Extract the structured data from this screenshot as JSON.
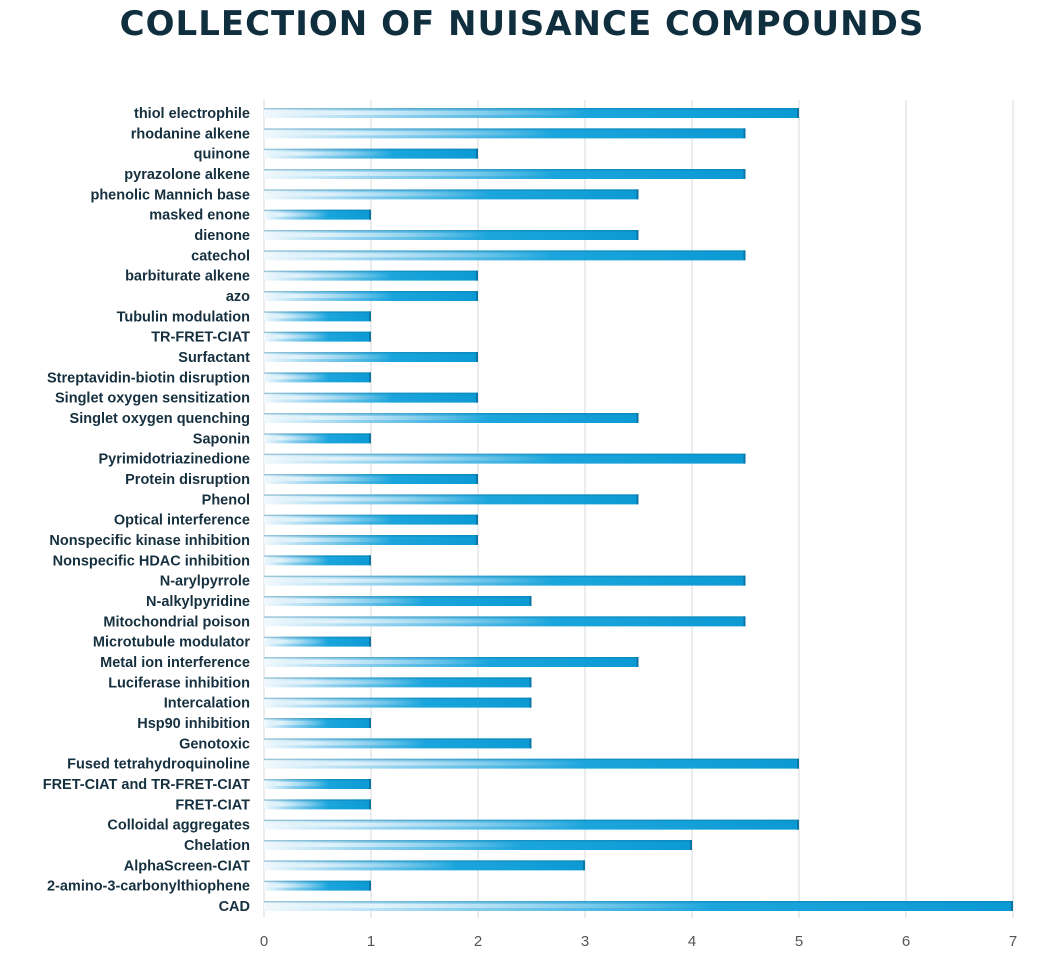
{
  "chart_data": {
    "type": "bar",
    "orientation": "horizontal",
    "title": "COLLECTION OF NUISANCE COMPOUNDS",
    "xlabel": "",
    "ylabel": "",
    "xlim": [
      0,
      7
    ],
    "xticks": [
      0,
      1,
      2,
      3,
      4,
      5,
      6,
      7
    ],
    "grid": true,
    "bar_color": "#0e9fd8",
    "categories": [
      "thiol electrophile",
      "rhodanine alkene",
      "quinone",
      "pyrazolone alkene",
      "phenolic Mannich base",
      "masked enone",
      "dienone",
      "catechol",
      "barbiturate alkene",
      "azo",
      "Tubulin modulation",
      "TR-FRET-CIAT",
      "Surfactant",
      "Streptavidin-biotin disruption",
      "Singlet oxygen sensitization",
      "Singlet oxygen quenching",
      "Saponin",
      "Pyrimidotriazinedione",
      "Protein disruption",
      "Phenol",
      "Optical interference",
      "Nonspecific kinase inhibition",
      "Nonspecific HDAC inhibition",
      "N-arylpyrrole",
      "N-alkylpyridine",
      "Mitochondrial poison",
      "Microtubule modulator",
      "Metal ion interference",
      "Luciferase inhibition",
      "Intercalation",
      "Hsp90 inhibition",
      "Genotoxic",
      "Fused tetrahydroquinoline",
      "FRET-CIAT and TR-FRET-CIAT",
      "FRET-CIAT",
      "Colloidal aggregates",
      "Chelation",
      "AlphaScreen-CIAT",
      "2-amino-3-carbonylthiophene",
      "CAD"
    ],
    "values": [
      5,
      4.5,
      2,
      4.5,
      3.5,
      1,
      3.5,
      4.5,
      2,
      2,
      1,
      1,
      2,
      1,
      2,
      3.5,
      1,
      4.5,
      2,
      3.5,
      2,
      2,
      1,
      4.5,
      2.5,
      4.5,
      1,
      3.5,
      2.5,
      2.5,
      1,
      2.5,
      5,
      1,
      1,
      5,
      4,
      3,
      1,
      7
    ]
  }
}
